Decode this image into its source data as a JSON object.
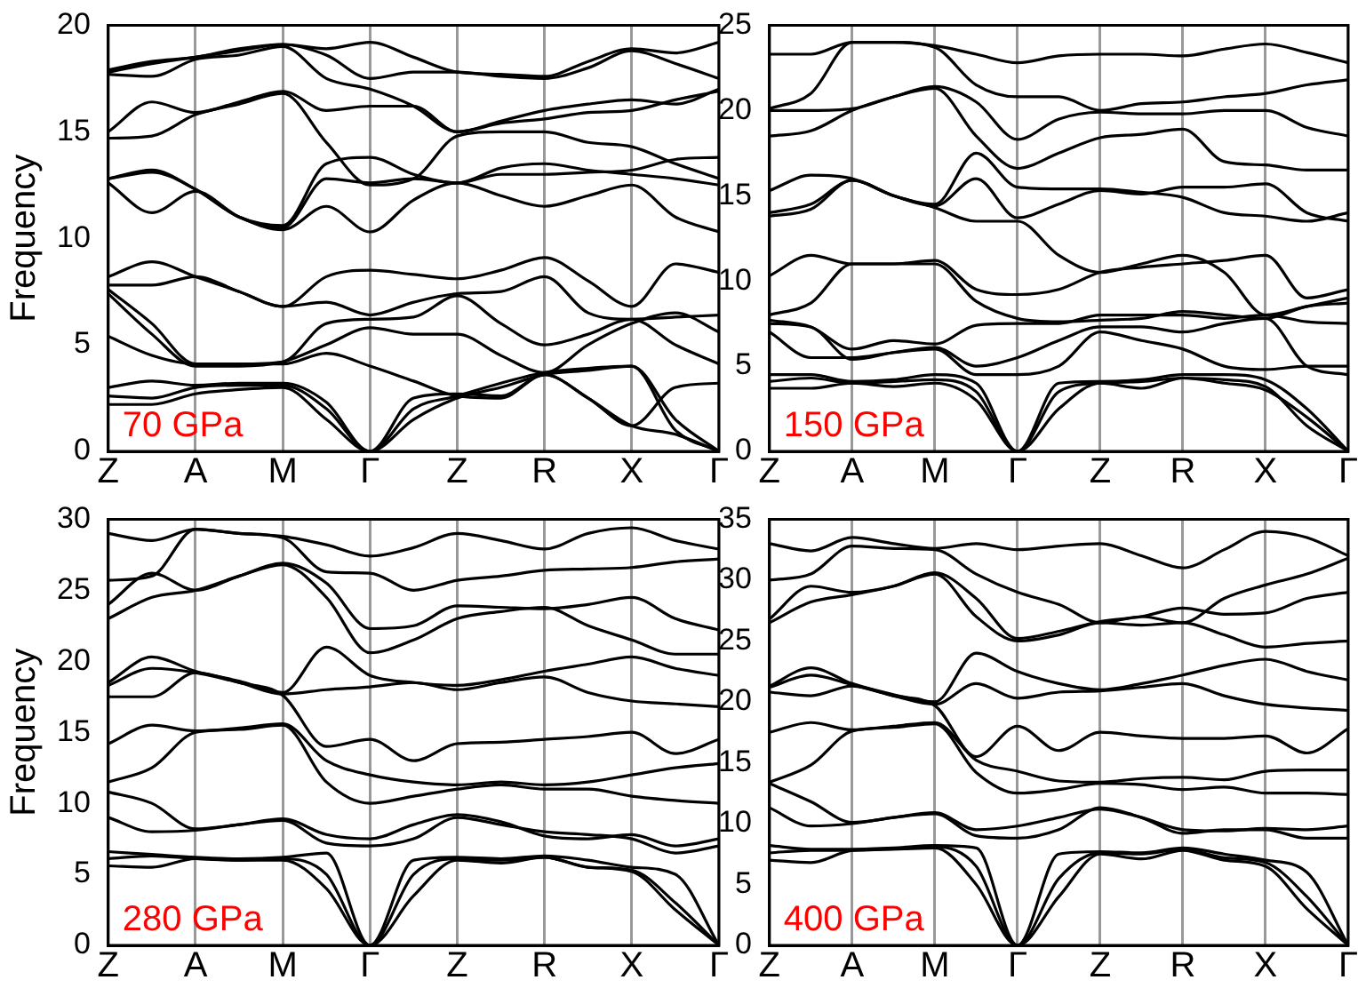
{
  "chart_data": [
    {
      "type": "line",
      "ylabel": "Frequency",
      "annotations": [
        "70 GPa"
      ],
      "categories": [
        "Z",
        null,
        "A",
        null,
        "M",
        null,
        "Γ",
        null,
        "Z",
        null,
        "R",
        null,
        "X",
        null,
        "Γ"
      ],
      "ylim": [
        0,
        20
      ],
      "yticks": [
        0,
        5,
        10,
        15,
        20
      ],
      "grid": "x",
      "legend": false,
      "marker": "none",
      "line_style": "solid",
      "series": [
        {
          "color": "#000000",
          "values": [
            2.2,
            2.2,
            2.7,
            2.9,
            3.0,
            1.5,
            0,
            1.5,
            2.5,
            3.0,
            3.6,
            3.8,
            4.0,
            1.5,
            0
          ]
        },
        {
          "color": "#000000",
          "values": [
            2.6,
            2.5,
            3.0,
            3.1,
            3.1,
            2.0,
            0,
            2.0,
            2.6,
            3.2,
            3.7,
            3.9,
            4.0,
            1.0,
            0
          ]
        },
        {
          "color": "#000000",
          "values": [
            3.0,
            3.3,
            3.1,
            3.2,
            3.2,
            2.3,
            0,
            2.5,
            2.7,
            2.6,
            3.6,
            2.5,
            1.2,
            0.8,
            0
          ]
        },
        {
          "color": "#000000",
          "values": [
            5.4,
            4.5,
            4.1,
            4.1,
            4.1,
            4.6,
            4.0,
            3.3,
            2.6,
            2.5,
            3.6,
            2.5,
            1.2,
            3.0,
            3.2
          ]
        },
        {
          "color": "#000000",
          "values": [
            7.4,
            5.5,
            4.0,
            4.0,
            4.2,
            5.0,
            5.8,
            5.5,
            5.5,
            4.5,
            3.7,
            5.0,
            6.0,
            6.5,
            5.6
          ]
        },
        {
          "color": "#000000",
          "values": [
            7.6,
            6.0,
            4.1,
            4.1,
            4.2,
            6.0,
            6.2,
            6.3,
            7.3,
            6.0,
            5.0,
            5.5,
            6.2,
            5.0,
            4.1
          ]
        },
        {
          "color": "#000000",
          "values": [
            7.8,
            7.8,
            8.2,
            7.5,
            6.8,
            7.0,
            6.4,
            7.0,
            7.4,
            7.5,
            8.2,
            6.5,
            6.2,
            6.3,
            6.4
          ]
        },
        {
          "color": "#000000",
          "values": [
            8.2,
            8.9,
            8.2,
            7.5,
            6.8,
            8.2,
            8.5,
            8.3,
            8.1,
            8.5,
            9.1,
            8.0,
            6.8,
            8.8,
            8.4
          ]
        },
        {
          "color": "#000000",
          "values": [
            12.6,
            11.2,
            12.2,
            11.0,
            10.4,
            11.5,
            10.3,
            11.8,
            12.6,
            12.0,
            11.5,
            12.0,
            12.5,
            11.0,
            10.3
          ]
        },
        {
          "color": "#000000",
          "values": [
            12.8,
            13.1,
            12.3,
            11.0,
            10.5,
            12.8,
            12.6,
            12.8,
            12.6,
            13.3,
            13.5,
            13.2,
            13.0,
            12.8,
            12.5
          ]
        },
        {
          "color": "#000000",
          "values": [
            12.8,
            13.2,
            12.3,
            11.0,
            10.6,
            13.5,
            13.8,
            13.0,
            12.6,
            13.0,
            13.0,
            13.1,
            13.2,
            13.7,
            13.8
          ]
        },
        {
          "color": "#000000",
          "values": [
            14.7,
            14.8,
            15.8,
            16.3,
            16.8,
            14.5,
            12.5,
            12.8,
            14.8,
            15.0,
            15.0,
            14.5,
            14.3,
            13.5,
            12.8
          ]
        },
        {
          "color": "#000000",
          "values": [
            15.0,
            16.4,
            15.9,
            16.4,
            16.9,
            16.0,
            16.2,
            16.2,
            15.0,
            15.4,
            15.6,
            15.9,
            16.0,
            16.5,
            16.9
          ]
        },
        {
          "color": "#000000",
          "values": [
            17.7,
            17.6,
            18.4,
            18.6,
            19.0,
            17.5,
            17.0,
            16.2,
            15.0,
            15.5,
            16.0,
            16.3,
            16.5,
            16.3,
            17.0
          ]
        },
        {
          "color": "#000000",
          "values": [
            17.8,
            18.2,
            18.5,
            18.8,
            19.1,
            18.6,
            17.5,
            17.8,
            17.8,
            17.6,
            17.5,
            18.0,
            18.8,
            18.2,
            17.5
          ]
        },
        {
          "color": "#000000",
          "values": [
            17.9,
            18.3,
            18.5,
            18.9,
            19.1,
            18.9,
            19.2,
            18.5,
            17.8,
            17.7,
            17.6,
            18.3,
            18.9,
            18.7,
            19.2
          ]
        }
      ]
    },
    {
      "type": "line",
      "annotations": [
        "150 GPa"
      ],
      "categories": [
        "Z",
        null,
        "A",
        null,
        "M",
        null,
        "Γ",
        null,
        "Z",
        null,
        "R",
        null,
        "X",
        null,
        "Γ"
      ],
      "ylim": [
        0,
        25
      ],
      "yticks": [
        0,
        5,
        10,
        15,
        20,
        25
      ],
      "grid": "x",
      "legend": false,
      "marker": "none",
      "line_style": "solid",
      "series": [
        {
          "color": "#000000",
          "values": [
            3.7,
            3.7,
            4.0,
            3.8,
            4.0,
            3.0,
            0,
            2.5,
            4.0,
            3.7,
            4.3,
            4.0,
            3.6,
            2.0,
            0
          ]
        },
        {
          "color": "#000000",
          "values": [
            4.1,
            4.3,
            4.0,
            4.1,
            4.2,
            3.5,
            0,
            3.5,
            4.0,
            4.1,
            4.3,
            4.2,
            3.8,
            1.5,
            0
          ]
        },
        {
          "color": "#000000",
          "values": [
            4.5,
            4.5,
            4.1,
            4.2,
            4.5,
            4.0,
            0,
            4.0,
            4.1,
            4.2,
            4.5,
            4.5,
            4.2,
            2.5,
            0
          ]
        },
        {
          "color": "#000000",
          "values": [
            7.0,
            5.5,
            5.5,
            5.8,
            6.0,
            4.5,
            4.5,
            5.0,
            7.0,
            6.5,
            6.0,
            5.0,
            4.8,
            5.0,
            5.0
          ]
        },
        {
          "color": "#000000",
          "values": [
            7.5,
            7.3,
            5.4,
            5.8,
            6.1,
            5.0,
            5.5,
            6.5,
            7.3,
            7.3,
            7.0,
            7.5,
            7.8,
            5.0,
            4.5
          ]
        },
        {
          "color": "#000000",
          "values": [
            7.7,
            7.3,
            6.0,
            6.5,
            6.3,
            7.4,
            7.5,
            7.5,
            8.0,
            8.0,
            8.0,
            7.8,
            8.0,
            7.6,
            7.5
          ]
        },
        {
          "color": "#000000",
          "values": [
            8.0,
            8.7,
            11.0,
            11.0,
            11.0,
            8.8,
            7.8,
            7.6,
            7.7,
            7.8,
            8.2,
            8.0,
            7.8,
            8.5,
            8.7
          ]
        },
        {
          "color": "#000000",
          "values": [
            10.3,
            11.5,
            11.0,
            11.0,
            11.2,
            9.5,
            9.2,
            9.5,
            10.5,
            10.8,
            11.0,
            11.2,
            11.5,
            9.0,
            9.5
          ]
        },
        {
          "color": "#000000",
          "values": [
            13.8,
            14.2,
            15.9,
            15.0,
            14.3,
            13.5,
            13.5,
            11.5,
            10.5,
            11.0,
            11.5,
            10.5,
            8.0,
            8.5,
            9.0
          ]
        },
        {
          "color": "#000000",
          "values": [
            14.0,
            14.5,
            15.9,
            15.0,
            14.4,
            16.0,
            13.7,
            14.5,
            15.3,
            15.1,
            15.5,
            15.5,
            15.7,
            14.0,
            13.5
          ]
        },
        {
          "color": "#000000",
          "values": [
            15.3,
            16.2,
            16.0,
            15.0,
            14.5,
            17.5,
            15.5,
            15.4,
            15.4,
            15.2,
            14.9,
            14.0,
            13.8,
            13.5,
            14.0
          ]
        },
        {
          "color": "#000000",
          "values": [
            18.5,
            18.8,
            20.0,
            20.8,
            21.3,
            18.5,
            16.6,
            17.5,
            18.4,
            18.6,
            18.9,
            17.0,
            16.8,
            16.5,
            16.5
          ]
        },
        {
          "color": "#000000",
          "values": [
            20.0,
            20.0,
            20.1,
            20.8,
            21.4,
            20.5,
            18.3,
            19.5,
            19.9,
            19.8,
            19.8,
            20.0,
            20.0,
            19.0,
            18.5
          ]
        },
        {
          "color": "#000000",
          "values": [
            20.1,
            21.0,
            24.0,
            24.0,
            23.7,
            21.5,
            20.8,
            20.8,
            20.0,
            20.4,
            20.5,
            20.8,
            21.0,
            21.5,
            21.8
          ]
        },
        {
          "color": "#000000",
          "values": [
            23.3,
            23.3,
            24.0,
            24.0,
            23.8,
            23.3,
            22.8,
            23.2,
            23.3,
            23.3,
            23.2,
            23.6,
            23.9,
            23.4,
            22.8
          ]
        }
      ]
    },
    {
      "type": "line",
      "ylabel": "Frequency",
      "annotations": [
        "280 GPa"
      ],
      "categories": [
        "Z",
        null,
        "A",
        null,
        "M",
        null,
        "Γ",
        null,
        "Z",
        null,
        "R",
        null,
        "X",
        null,
        "Γ"
      ],
      "ylim": [
        0,
        30
      ],
      "yticks": [
        0,
        5,
        10,
        15,
        20,
        25,
        30
      ],
      "grid": "x",
      "legend": false,
      "marker": "none",
      "line_style": "solid",
      "series": [
        {
          "color": "#000000",
          "values": [
            5.6,
            5.5,
            6.1,
            6.0,
            6.0,
            4.0,
            0,
            3.5,
            6.0,
            5.8,
            6.2,
            5.5,
            5.2,
            2.5,
            0
          ]
        },
        {
          "color": "#000000",
          "values": [
            6.1,
            6.3,
            6.1,
            6.0,
            6.1,
            5.0,
            0,
            5.0,
            6.1,
            6.0,
            6.2,
            5.5,
            5.3,
            3.0,
            0
          ]
        },
        {
          "color": "#000000",
          "values": [
            6.6,
            6.4,
            6.2,
            6.1,
            6.2,
            6.5,
            0,
            6.0,
            6.2,
            6.1,
            6.3,
            6.0,
            5.5,
            5.0,
            0
          ]
        },
        {
          "color": "#000000",
          "values": [
            9.0,
            8.0,
            8.1,
            8.5,
            8.8,
            7.2,
            7.0,
            7.5,
            9.0,
            8.5,
            8.0,
            7.8,
            7.5,
            6.5,
            7.0
          ]
        },
        {
          "color": "#000000",
          "values": [
            10.8,
            10.0,
            8.2,
            8.5,
            8.9,
            7.8,
            7.5,
            8.5,
            9.2,
            8.7,
            7.7,
            7.5,
            7.8,
            7.0,
            7.5
          ]
        },
        {
          "color": "#000000",
          "values": [
            11.5,
            12.5,
            15.0,
            15.2,
            15.5,
            11.5,
            10.0,
            10.5,
            11.0,
            11.3,
            11.0,
            11.0,
            10.5,
            10.2,
            10.0
          ]
        },
        {
          "color": "#000000",
          "values": [
            14.2,
            15.5,
            15.1,
            15.3,
            15.6,
            13.0,
            12.0,
            11.5,
            11.3,
            11.5,
            11.3,
            11.5,
            12.0,
            12.5,
            12.8
          ]
        },
        {
          "color": "#000000",
          "values": [
            17.5,
            17.5,
            19.2,
            18.5,
            17.6,
            14.0,
            14.5,
            13.0,
            14.2,
            14.3,
            14.5,
            14.7,
            15.0,
            13.5,
            14.5
          ]
        },
        {
          "color": "#000000",
          "values": [
            18.3,
            19.5,
            19.2,
            18.5,
            17.7,
            18.0,
            18.2,
            18.5,
            18.0,
            18.5,
            18.9,
            17.8,
            17.2,
            17.0,
            16.8
          ]
        },
        {
          "color": "#000000",
          "values": [
            18.5,
            20.3,
            19.3,
            18.6,
            17.8,
            21.0,
            19.0,
            18.5,
            18.3,
            18.7,
            19.3,
            19.8,
            20.3,
            19.5,
            19.0
          ]
        },
        {
          "color": "#000000",
          "values": [
            23.0,
            24.5,
            25.0,
            26.0,
            26.8,
            24.5,
            20.6,
            21.5,
            23.0,
            23.5,
            23.8,
            22.5,
            21.5,
            20.5,
            20.5
          ]
        },
        {
          "color": "#000000",
          "values": [
            24.0,
            26.2,
            25.0,
            26.0,
            26.9,
            25.5,
            22.3,
            22.5,
            23.9,
            23.8,
            23.7,
            24.0,
            24.5,
            23.0,
            22.2
          ]
        },
        {
          "color": "#000000",
          "values": [
            25.7,
            26.0,
            29.3,
            29.0,
            28.7,
            26.3,
            26.2,
            25.0,
            25.7,
            26.0,
            26.4,
            26.5,
            26.6,
            27.0,
            27.2
          ]
        },
        {
          "color": "#000000",
          "values": [
            29.0,
            28.5,
            29.3,
            29.0,
            28.8,
            28.2,
            27.4,
            28.0,
            29.0,
            28.5,
            27.9,
            29.0,
            29.4,
            28.5,
            27.9
          ]
        }
      ]
    },
    {
      "type": "line",
      "annotations": [
        "400 GPa"
      ],
      "categories": [
        "Z",
        null,
        "A",
        null,
        "M",
        null,
        "Γ",
        null,
        "Z",
        null,
        "R",
        null,
        "X",
        null,
        "Γ"
      ],
      "ylim": [
        0,
        35
      ],
      "yticks": [
        0,
        5,
        10,
        15,
        20,
        25,
        30,
        35
      ],
      "grid": "x",
      "legend": false,
      "marker": "none",
      "line_style": "solid",
      "series": [
        {
          "color": "#000000",
          "values": [
            7.0,
            6.8,
            7.8,
            7.9,
            8.0,
            5.0,
            0,
            4.0,
            7.5,
            7.1,
            7.8,
            7.0,
            6.5,
            3.0,
            0
          ]
        },
        {
          "color": "#000000",
          "values": [
            7.6,
            7.8,
            7.8,
            7.9,
            8.1,
            6.5,
            0,
            5.5,
            7.6,
            7.5,
            7.9,
            7.2,
            6.8,
            4.0,
            0
          ]
        },
        {
          "color": "#000000",
          "values": [
            8.2,
            7.9,
            7.9,
            8.0,
            8.2,
            8.0,
            0,
            7.5,
            7.7,
            7.6,
            8.0,
            7.5,
            7.0,
            6.0,
            0
          ]
        },
        {
          "color": "#000000",
          "values": [
            11.3,
            9.8,
            10.0,
            10.5,
            10.8,
            9.0,
            8.8,
            9.5,
            11.3,
            10.5,
            9.2,
            9.5,
            9.5,
            8.8,
            8.8
          ]
        },
        {
          "color": "#000000",
          "values": [
            13.3,
            11.8,
            10.1,
            10.5,
            10.9,
            9.5,
            9.8,
            10.5,
            11.2,
            10.5,
            9.5,
            9.4,
            9.6,
            9.5,
            9.8
          ]
        },
        {
          "color": "#000000",
          "values": [
            13.4,
            14.8,
            17.6,
            17.9,
            18.2,
            14.2,
            12.5,
            12.8,
            13.3,
            13.2,
            12.8,
            13.0,
            12.5,
            12.5,
            12.4
          ]
        },
        {
          "color": "#000000",
          "values": [
            17.5,
            18.3,
            17.7,
            18.0,
            18.3,
            15.2,
            14.3,
            13.5,
            13.4,
            13.7,
            13.8,
            13.6,
            14.3,
            14.4,
            14.4
          ]
        },
        {
          "color": "#000000",
          "values": [
            20.8,
            20.5,
            21.3,
            20.5,
            19.7,
            15.5,
            18.0,
            16.0,
            17.5,
            17.2,
            17.0,
            17.0,
            17.2,
            15.8,
            17.8
          ]
        },
        {
          "color": "#000000",
          "values": [
            21.2,
            22.2,
            21.4,
            20.5,
            19.8,
            21.5,
            20.3,
            20.8,
            20.9,
            21.2,
            21.5,
            20.5,
            19.8,
            19.5,
            19.3
          ]
        },
        {
          "color": "#000000",
          "values": [
            21.3,
            22.8,
            21.5,
            20.6,
            20.0,
            24.0,
            22.5,
            21.5,
            21.0,
            21.5,
            22.2,
            23.0,
            23.5,
            22.5,
            21.8
          ]
        },
        {
          "color": "#000000",
          "values": [
            26.5,
            28.2,
            28.8,
            29.5,
            30.5,
            27.0,
            25.0,
            25.5,
            26.5,
            26.3,
            26.5,
            25.5,
            24.5,
            24.8,
            25.0
          ]
        },
        {
          "color": "#000000",
          "values": [
            26.8,
            29.5,
            29.0,
            29.5,
            30.6,
            28.5,
            25.2,
            25.8,
            26.6,
            27.0,
            27.7,
            27.2,
            27.3,
            28.5,
            29.0
          ]
        },
        {
          "color": "#000000",
          "values": [
            30.0,
            30.5,
            32.8,
            32.6,
            32.5,
            30.5,
            29.0,
            28.0,
            26.5,
            27.0,
            26.5,
            28.5,
            29.6,
            30.5,
            31.8
          ]
        },
        {
          "color": "#000000",
          "values": [
            33.0,
            32.4,
            33.5,
            33.0,
            32.6,
            33.0,
            32.5,
            32.8,
            33.0,
            32.0,
            31.0,
            32.5,
            34.0,
            33.5,
            32.0
          ]
        }
      ]
    }
  ]
}
